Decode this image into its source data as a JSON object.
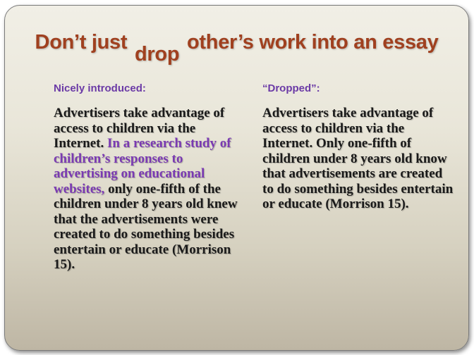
{
  "title": {
    "part1": "Don’t just",
    "emphasis": "drop",
    "part2": "other’s work into an essay"
  },
  "left": {
    "label": "Nicely introduced:",
    "sentence1": "Advertisers take advantage of access to children via the Internet.",
    "intro": "In a research study of children’s responses to advertising on educational websites,",
    "rest": "only one-fifth of the children under 8 years old knew that the advertisements were created to do something besides entertain or educate (Morrison 15)."
  },
  "right": {
    "label": "“Dropped”:",
    "sentence1": "Advertisers take advantage of access to children via the Internet.",
    "dropped": "Only one-fifth of children under 8 years old know that advertisements are created to do something besides entertain or educate (Morrison 15)."
  },
  "colors": {
    "title": "#a0401f",
    "label": "#6b3aa6",
    "intro": "#7a3ab2",
    "body": "#1a1a1a"
  }
}
